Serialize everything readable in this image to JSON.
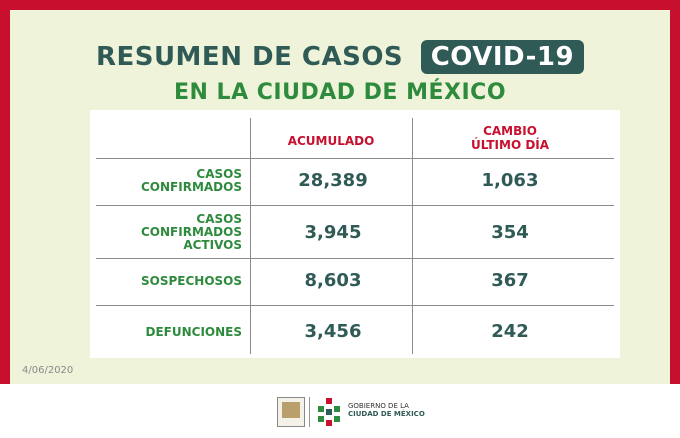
{
  "title": {
    "main": "RESUMEN DE CASOS",
    "badge": "COVID-19"
  },
  "subtitle": "EN LA CIUDAD DE MÉXICO",
  "table": {
    "headers": {
      "accumulated": "ACUMULADO",
      "change_line1": "CAMBIO",
      "change_line2": "ÚLTIMO DÍA"
    },
    "rows": [
      {
        "label_lines": [
          "CASOS",
          "CONFIRMADOS"
        ],
        "accumulated": "28,389",
        "change": "1,063"
      },
      {
        "label_lines": [
          "CASOS",
          "CONFIRMADOS",
          "ACTIVOS"
        ],
        "accumulated": "3,945",
        "change": "354"
      },
      {
        "label_lines": [
          "SOSPECHOSOS"
        ],
        "accumulated": "8,603",
        "change": "367"
      },
      {
        "label_lines": [
          "DEFUNCIONES"
        ],
        "accumulated": "3,456",
        "change": "242"
      }
    ]
  },
  "date": "4/06/2020",
  "footer": {
    "gov_line1": "GOBIERNO DE LA",
    "gov_line2": "CIUDAD DE MÉXICO"
  },
  "colors": {
    "frame": "#c8102e",
    "panel": "#eef3d9",
    "title": "#2f5a56",
    "subtitle": "#2e8b3d",
    "header": "#c8102e",
    "row_label": "#2e8b3d"
  }
}
